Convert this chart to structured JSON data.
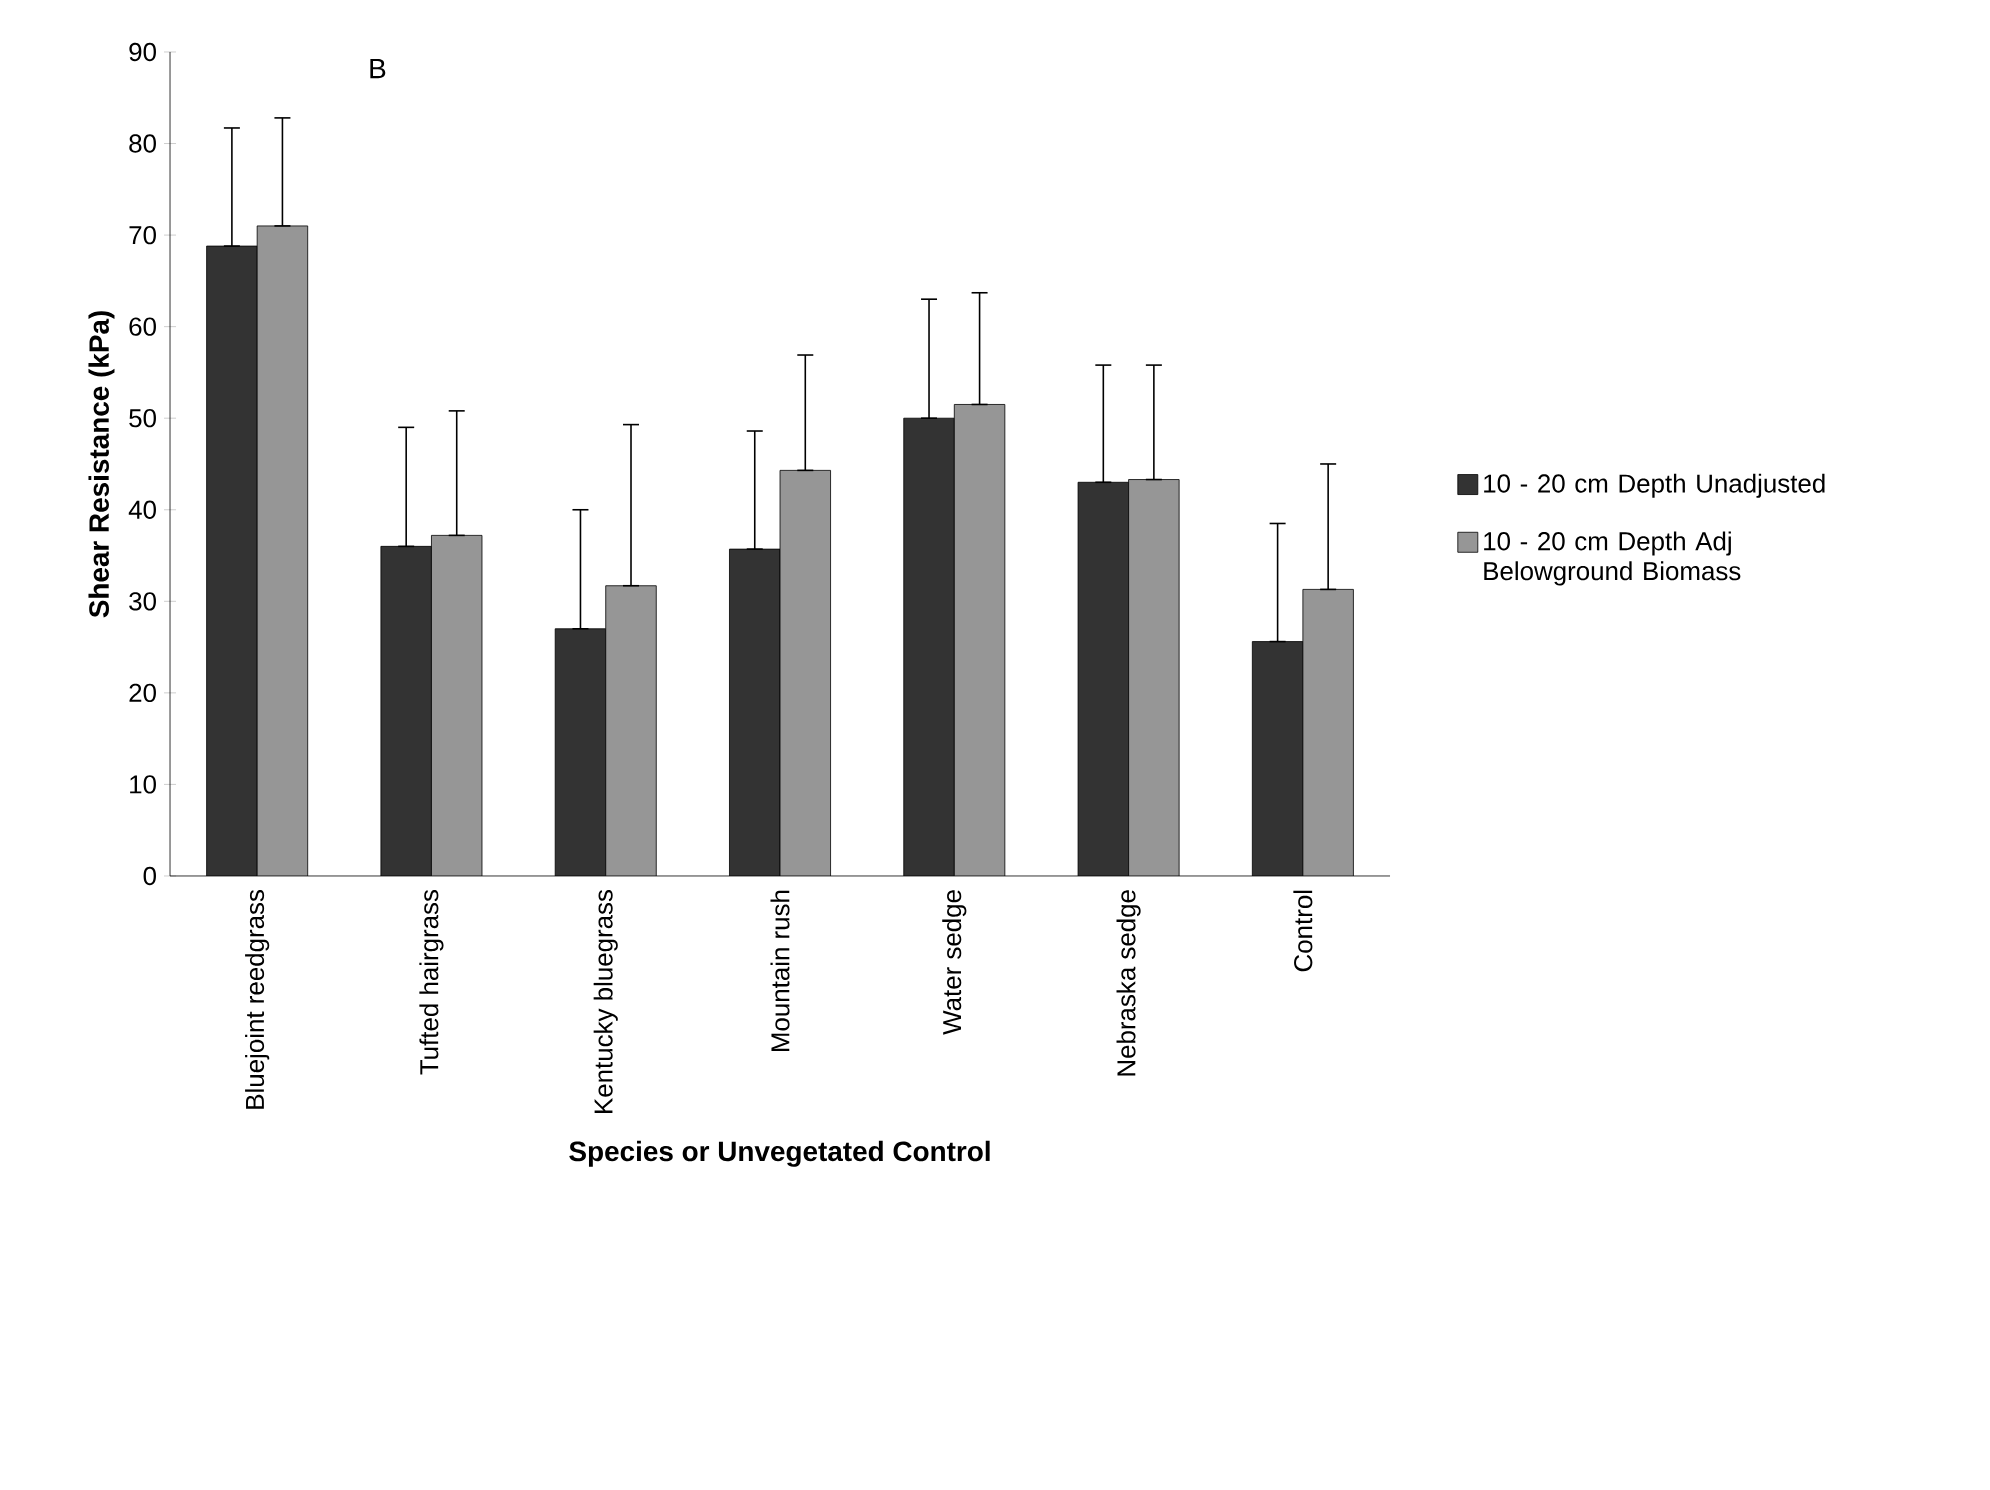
{
  "chart_data": {
    "type": "bar",
    "xlabel": "Species or Unvegetated Control",
    "ylabel": "Shear Resistance (kPa)",
    "categories": [
      "Bluejoint reedgrass",
      "Tufted hairgrass",
      "Kentucky bluegrass",
      "Mountain rush",
      "Water sedge",
      "Nebraska sedge",
      "Control"
    ],
    "series": [
      {
        "name": "10 - 20 cm Depth Unadjusted",
        "color": "#333333",
        "values": [
          68.8,
          36.0,
          27.0,
          35.7,
          50.0,
          43.0,
          25.6
        ],
        "errors": [
          [
            68.8,
            81.7
          ],
          [
            36.0,
            49.0
          ],
          [
            27.0,
            40.0
          ],
          [
            35.7,
            48.6
          ],
          [
            50.0,
            63.0
          ],
          [
            43.0,
            55.8
          ],
          [
            25.6,
            38.5
          ]
        ]
      },
      {
        "name": "10 - 20 cm Depth Adj Belowground Biomass",
        "color": "#969696",
        "values": [
          71.0,
          37.2,
          31.7,
          44.3,
          51.5,
          43.3,
          31.3
        ],
        "errors": [
          [
            71.0,
            82.8
          ],
          [
            37.2,
            50.8
          ],
          [
            31.7,
            49.3
          ],
          [
            44.3,
            56.9
          ],
          [
            51.5,
            63.7
          ],
          [
            43.3,
            55.8
          ],
          [
            31.3,
            45.0
          ]
        ]
      }
    ],
    "ylim": [
      0,
      90
    ],
    "yticks": [
      0,
      10,
      20,
      30,
      40,
      50,
      60,
      70,
      80,
      90
    ],
    "annotations": [
      "B"
    ],
    "legend": "right",
    "grid": false
  }
}
